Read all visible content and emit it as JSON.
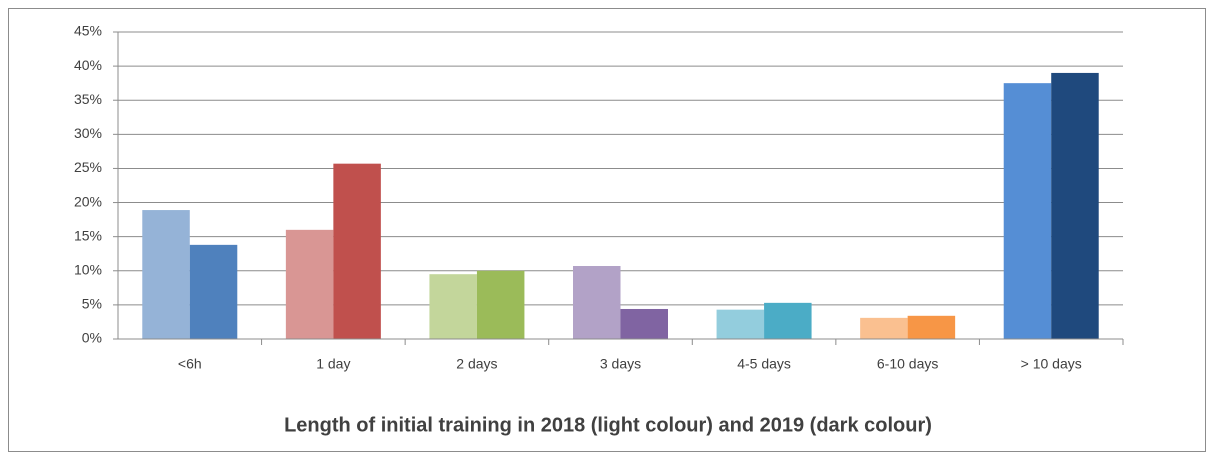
{
  "chart_data": {
    "type": "bar",
    "title": "Length of initial training in 2018 (light colour) and 2019 (dark colour)",
    "categories": [
      "<6h",
      "1 day",
      "2 days",
      "3 days",
      "4-5 days",
      "6-10 days",
      "> 10 days"
    ],
    "series": [
      {
        "colors": [
          "#95b3d7",
          "#d99694",
          "#c3d69b",
          "#b2a2c7",
          "#93cddd",
          "#fac090",
          "#558ed5"
        ],
        "values": [
          18.9,
          16.0,
          9.5,
          10.7,
          4.3,
          3.1,
          37.5
        ]
      },
      {
        "colors": [
          "#4f81bd",
          "#c0504d",
          "#9bbb59",
          "#8064a2",
          "#4bacc6",
          "#f79646",
          "#1f497d"
        ],
        "values": [
          13.8,
          25.7,
          10.0,
          4.4,
          5.3,
          3.4,
          39.0
        ]
      }
    ],
    "ylim": [
      0,
      45
    ],
    "yticks": [
      {
        "value": 0,
        "label": "0%"
      },
      {
        "value": 5,
        "label": "5%"
      },
      {
        "value": 10,
        "label": "10%"
      },
      {
        "value": 15,
        "label": "15%"
      },
      {
        "value": 20,
        "label": "20%"
      },
      {
        "value": 25,
        "label": "25%"
      },
      {
        "value": 30,
        "label": "30%"
      },
      {
        "value": 35,
        "label": "35%"
      },
      {
        "value": 40,
        "label": "40%"
      },
      {
        "value": 45,
        "label": "45%"
      }
    ],
    "grid": true
  }
}
